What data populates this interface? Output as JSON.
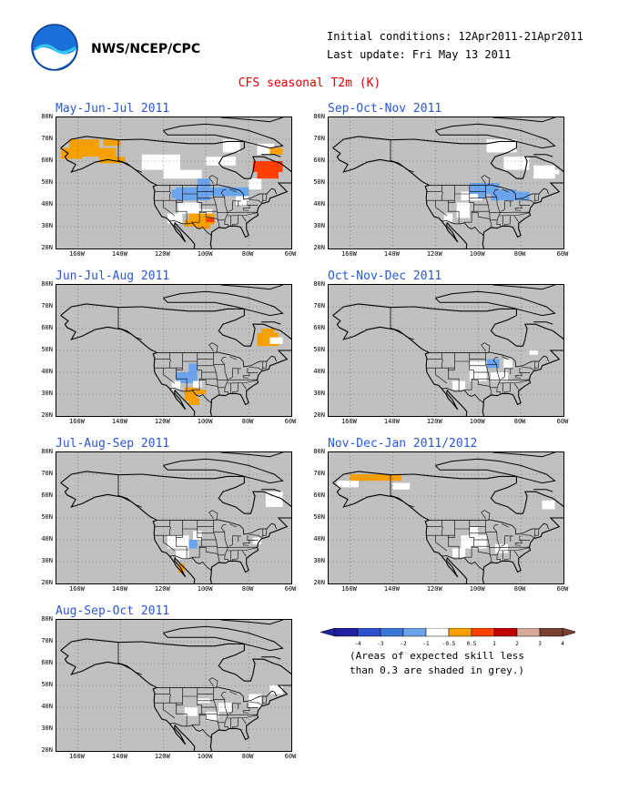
{
  "header": {
    "agency": "NWS/NCEP/CPC",
    "initial_conditions": "Initial conditions: 12Apr2011-21Apr2011",
    "last_update": "Last update: Fri May 13 2011",
    "title": "CFS seasonal T2m (K)"
  },
  "axes": {
    "lat_labels": [
      "80N",
      "70N",
      "60N",
      "50N",
      "40N",
      "30N",
      "20N"
    ],
    "lon_labels": [
      "160W",
      "140W",
      "120W",
      "100W",
      "80W",
      "60W"
    ]
  },
  "panels": [
    {
      "id": "mjj",
      "season": "May-Jun-Jul 2011",
      "anomalies": [
        {
          "category": "0.5 to 1",
          "region": "Alaska"
        },
        {
          "category": "0.5 to 1",
          "region": "Southern Plains / Texas"
        },
        {
          "category": "1 to 2",
          "region": "Eastern Canada"
        },
        {
          "category": "-1 to -0.5",
          "region": "Northern Plains / Great Lakes"
        },
        {
          "category": "-0.5 to 0.5",
          "region": "Canada, Southwest US"
        }
      ]
    },
    {
      "id": "son",
      "season": "Sep-Oct-Nov 2011",
      "anomalies": [
        {
          "category": "-1 to -0.5",
          "region": "Upper Midwest / Great Lakes"
        },
        {
          "category": "-0.5 to 0.5",
          "region": "Hudson Bay, Quebec, Western US"
        }
      ]
    },
    {
      "id": "jja",
      "season": "Jun-Jul-Aug 2011",
      "anomalies": [
        {
          "category": "0.5 to 1",
          "region": "Quebec"
        },
        {
          "category": "0.5 to 1",
          "region": "Southwest US / Mexico"
        },
        {
          "category": "-1 to -0.5",
          "region": "Southern Rockies"
        },
        {
          "category": "-0.5 to 0.5",
          "region": "Western US"
        }
      ]
    },
    {
      "id": "ond",
      "season": "Oct-Nov-Dec 2011",
      "anomalies": [
        {
          "category": "-1 to -0.5",
          "region": "Upper Midwest"
        },
        {
          "category": "-0.5 to 0.5",
          "region": "Central US"
        }
      ]
    },
    {
      "id": "jas",
      "season": "Jul-Aug-Sep 2011",
      "anomalies": [
        {
          "category": "0.5 to 1",
          "region": "Baja California"
        },
        {
          "category": "-1 to -0.5",
          "region": "Four Corners"
        },
        {
          "category": "-0.5 to 0.5",
          "region": "Western US, Quebec"
        }
      ]
    },
    {
      "id": "ndj",
      "season": "Nov-Dec-Jan 2011/2012",
      "anomalies": [
        {
          "category": "0.5 to 1",
          "region": "Alaska"
        },
        {
          "category": "-0.5 to 0.5",
          "region": "Central US, Quebec"
        }
      ]
    },
    {
      "id": "aso",
      "season": "Aug-Sep-Oct 2011",
      "anomalies": [
        {
          "category": "-0.5 to 0.5",
          "region": "Central and Eastern US"
        }
      ]
    }
  ],
  "legend": {
    "labels": [
      "-4",
      "-3",
      "-2",
      "-1",
      "-0.5",
      "0.5",
      "1",
      "2",
      "3",
      "4"
    ],
    "colors": [
      "#2020a0",
      "#3050d0",
      "#3a78d8",
      "#6aa4ec",
      "#ffffff",
      "#f5a000",
      "#ff4000",
      "#c00000",
      "#d8a898",
      "#7a4030"
    ],
    "note_line1": "(Areas of expected skill less",
    "note_line2": "than 0.3 are shaded in grey.)"
  }
}
